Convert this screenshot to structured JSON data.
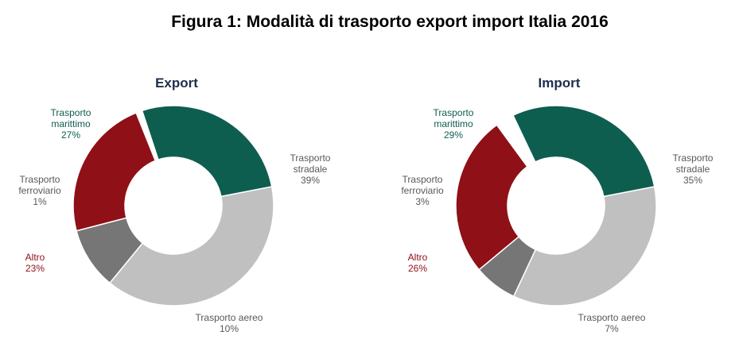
{
  "figure_title": "Figura 1: Modalità di trasporto export import Italia 2016",
  "colors": {
    "marittimo": "#0e5e50",
    "stradale": "#c0c0c0",
    "aereo": "#767676",
    "altro": "#8f1016",
    "ferroviario": "#ffffff"
  },
  "chart_data": [
    {
      "type": "pie",
      "title": "Export",
      "labels": [
        "Trasporto stradale",
        "Trasporto aereo",
        "Altro",
        "Trasporto ferroviario",
        "Trasporto marittimo"
      ],
      "label_lines": [
        [
          "Trasporto",
          "stradale",
          "39%"
        ],
        [
          "Trasporto aereo",
          "10%"
        ],
        [
          "Altro",
          "23%"
        ],
        [
          "Trasporto",
          "ferroviario",
          "1%"
        ],
        [
          "Trasporto",
          "marittimo",
          "27%"
        ]
      ],
      "values": [
        39,
        10,
        23,
        1,
        27
      ],
      "unit": "%",
      "donut": true
    },
    {
      "type": "pie",
      "title": "Import",
      "labels": [
        "Trasporto stradale",
        "Trasporto aereo",
        "Altro",
        "Trasporto ferroviario",
        "Trasporto marittimo"
      ],
      "label_lines": [
        [
          "Trasporto",
          "stradale",
          "35%"
        ],
        [
          "Trasporto aereo",
          "7%"
        ],
        [
          "Altro",
          "26%"
        ],
        [
          "Trasporto",
          "ferroviario",
          "3%"
        ],
        [
          "Trasporto",
          "marittimo",
          "29%"
        ]
      ],
      "values": [
        35,
        7,
        26,
        3,
        29
      ],
      "unit": "%",
      "donut": true
    }
  ]
}
